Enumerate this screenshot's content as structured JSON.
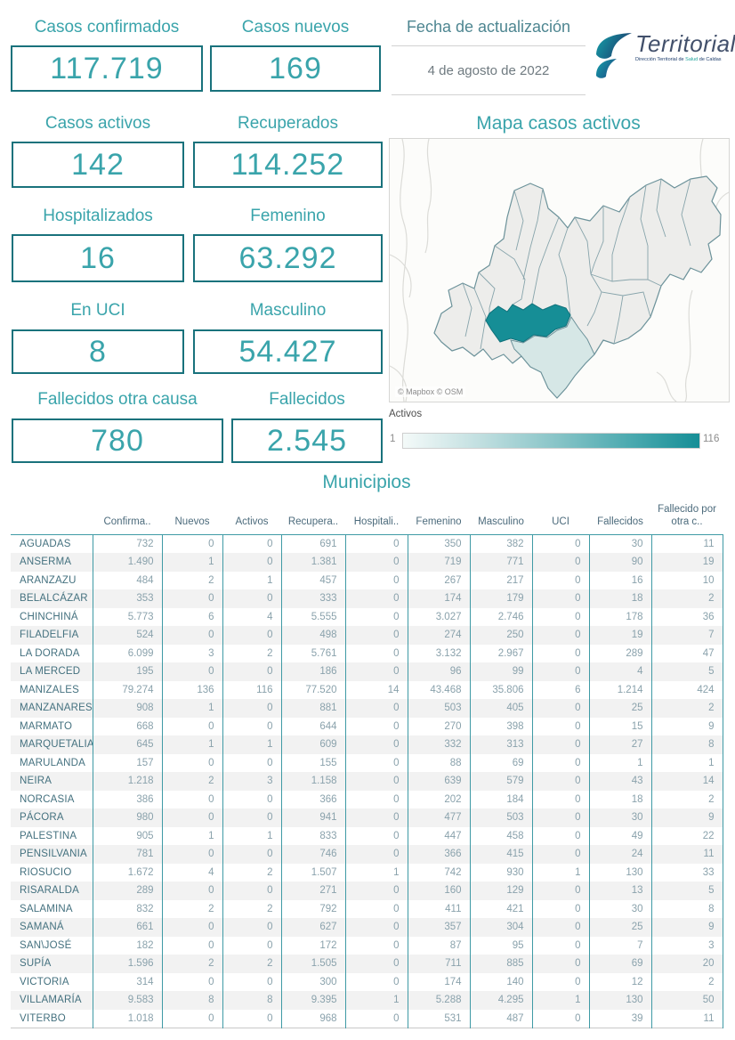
{
  "stats": {
    "cards": [
      {
        "id": "confirmados",
        "label": "Casos confirmados",
        "value": "117.719"
      },
      {
        "id": "nuevos",
        "label": "Casos nuevos",
        "value": "169"
      },
      {
        "id": "activos",
        "label": "Casos activos",
        "value": "142"
      },
      {
        "id": "recuperados",
        "label": "Recuperados",
        "value": "114.252"
      },
      {
        "id": "hospitalizados",
        "label": "Hospitalizados",
        "value": "16"
      },
      {
        "id": "femenino",
        "label": "Femenino",
        "value": "63.292"
      },
      {
        "id": "uci",
        "label": "En UCI",
        "value": "8"
      },
      {
        "id": "masculino",
        "label": "Masculino",
        "value": "54.427"
      },
      {
        "id": "fallecidos_otra",
        "label": "Fallecidos otra causa",
        "value": "780"
      },
      {
        "id": "fallecidos",
        "label": "Fallecidos",
        "value": "2.545"
      }
    ]
  },
  "update": {
    "label": "Fecha de actualización",
    "value": "4 de agosto de 2022"
  },
  "logo": {
    "name": "Territorial",
    "subtitle_pre": "Dirección Territorial de ",
    "subtitle_accent": "Salud",
    "subtitle_post": " de Caldas"
  },
  "map": {
    "title": "Mapa casos activos",
    "attribution": "© Mapbox © OSM",
    "legend_label": "Activos",
    "legend_min": "1",
    "legend_max": "116",
    "highlight_color": "#168e96",
    "secondary_color": "#d6e7e6"
  },
  "table": {
    "title": "Municipios",
    "columns": [
      "Confirma..",
      "Nuevos",
      "Activos",
      "Recupera..",
      "Hospitali..",
      "Femenino",
      "Masculino",
      "UCI",
      "Fallecidos",
      "Fallecido por otra c.."
    ],
    "rows": [
      {
        "name": "AGUADAS",
        "values": [
          "732",
          "0",
          "0",
          "691",
          "0",
          "350",
          "382",
          "0",
          "30",
          "11"
        ]
      },
      {
        "name": "ANSERMA",
        "values": [
          "1.490",
          "1",
          "0",
          "1.381",
          "0",
          "719",
          "771",
          "0",
          "90",
          "19"
        ]
      },
      {
        "name": "ARANZAZU",
        "values": [
          "484",
          "2",
          "1",
          "457",
          "0",
          "267",
          "217",
          "0",
          "16",
          "10"
        ]
      },
      {
        "name": "BELALCÁZAR",
        "values": [
          "353",
          "0",
          "0",
          "333",
          "0",
          "174",
          "179",
          "0",
          "18",
          "2"
        ]
      },
      {
        "name": "CHINCHINÁ",
        "values": [
          "5.773",
          "6",
          "4",
          "5.555",
          "0",
          "3.027",
          "2.746",
          "0",
          "178",
          "36"
        ]
      },
      {
        "name": "FILADELFIA",
        "values": [
          "524",
          "0",
          "0",
          "498",
          "0",
          "274",
          "250",
          "0",
          "19",
          "7"
        ]
      },
      {
        "name": "LA DORADA",
        "values": [
          "6.099",
          "3",
          "2",
          "5.761",
          "0",
          "3.132",
          "2.967",
          "0",
          "289",
          "47"
        ]
      },
      {
        "name": "LA MERCED",
        "values": [
          "195",
          "0",
          "0",
          "186",
          "0",
          "96",
          "99",
          "0",
          "4",
          "5"
        ]
      },
      {
        "name": "MANIZALES",
        "values": [
          "79.274",
          "136",
          "116",
          "77.520",
          "14",
          "43.468",
          "35.806",
          "6",
          "1.214",
          "424"
        ]
      },
      {
        "name": "MANZANARES",
        "values": [
          "908",
          "1",
          "0",
          "881",
          "0",
          "503",
          "405",
          "0",
          "25",
          "2"
        ]
      },
      {
        "name": "MARMATO",
        "values": [
          "668",
          "0",
          "0",
          "644",
          "0",
          "270",
          "398",
          "0",
          "15",
          "9"
        ]
      },
      {
        "name": "MARQUETALIA",
        "values": [
          "645",
          "1",
          "1",
          "609",
          "0",
          "332",
          "313",
          "0",
          "27",
          "8"
        ]
      },
      {
        "name": "MARULANDA",
        "values": [
          "157",
          "0",
          "0",
          "155",
          "0",
          "88",
          "69",
          "0",
          "1",
          "1"
        ]
      },
      {
        "name": "NEIRA",
        "values": [
          "1.218",
          "2",
          "3",
          "1.158",
          "0",
          "639",
          "579",
          "0",
          "43",
          "14"
        ]
      },
      {
        "name": "NORCASIA",
        "values": [
          "386",
          "0",
          "0",
          "366",
          "0",
          "202",
          "184",
          "0",
          "18",
          "2"
        ]
      },
      {
        "name": "PÁCORA",
        "values": [
          "980",
          "0",
          "0",
          "941",
          "0",
          "477",
          "503",
          "0",
          "30",
          "9"
        ]
      },
      {
        "name": "PALESTINA",
        "values": [
          "905",
          "1",
          "1",
          "833",
          "0",
          "447",
          "458",
          "0",
          "49",
          "22"
        ]
      },
      {
        "name": "PENSILVANIA",
        "values": [
          "781",
          "0",
          "0",
          "746",
          "0",
          "366",
          "415",
          "0",
          "24",
          "11"
        ]
      },
      {
        "name": "RIOSUCIO",
        "values": [
          "1.672",
          "4",
          "2",
          "1.507",
          "1",
          "742",
          "930",
          "1",
          "130",
          "33"
        ]
      },
      {
        "name": "RISARALDA",
        "values": [
          "289",
          "0",
          "0",
          "271",
          "0",
          "160",
          "129",
          "0",
          "13",
          "5"
        ]
      },
      {
        "name": "SALAMINA",
        "values": [
          "832",
          "2",
          "2",
          "792",
          "0",
          "411",
          "421",
          "0",
          "30",
          "8"
        ]
      },
      {
        "name": "SAMANÁ",
        "values": [
          "661",
          "0",
          "0",
          "627",
          "0",
          "357",
          "304",
          "0",
          "25",
          "9"
        ]
      },
      {
        "name": "SAN\\JOSÉ",
        "values": [
          "182",
          "0",
          "0",
          "172",
          "0",
          "87",
          "95",
          "0",
          "7",
          "3"
        ]
      },
      {
        "name": "SUPÍA",
        "values": [
          "1.596",
          "2",
          "2",
          "1.505",
          "0",
          "711",
          "885",
          "0",
          "69",
          "20"
        ]
      },
      {
        "name": "VICTORIA",
        "values": [
          "314",
          "0",
          "0",
          "300",
          "0",
          "174",
          "140",
          "0",
          "12",
          "2"
        ]
      },
      {
        "name": "VILLAMARÍA",
        "values": [
          "9.583",
          "8",
          "8",
          "9.395",
          "1",
          "5.288",
          "4.295",
          "1",
          "130",
          "50"
        ]
      },
      {
        "name": "VITERBO",
        "values": [
          "1.018",
          "0",
          "0",
          "968",
          "0",
          "531",
          "487",
          "0",
          "39",
          "11"
        ]
      }
    ]
  },
  "chart_data": {
    "type": "heatmap",
    "subtype": "choropleth-map",
    "title": "Mapa casos activos",
    "legend": {
      "label": "Activos",
      "min": 1,
      "max": 116,
      "position": "below-map"
    },
    "regions": [
      {
        "name": "AGUADAS",
        "activos": 0
      },
      {
        "name": "ANSERMA",
        "activos": 0
      },
      {
        "name": "ARANZAZU",
        "activos": 1
      },
      {
        "name": "BELALCÁZAR",
        "activos": 0
      },
      {
        "name": "CHINCHINÁ",
        "activos": 4
      },
      {
        "name": "FILADELFIA",
        "activos": 0
      },
      {
        "name": "LA DORADA",
        "activos": 2
      },
      {
        "name": "LA MERCED",
        "activos": 0
      },
      {
        "name": "MANIZALES",
        "activos": 116
      },
      {
        "name": "MANZANARES",
        "activos": 0
      },
      {
        "name": "MARMATO",
        "activos": 0
      },
      {
        "name": "MARQUETALIA",
        "activos": 1
      },
      {
        "name": "MARULANDA",
        "activos": 0
      },
      {
        "name": "NEIRA",
        "activos": 3
      },
      {
        "name": "NORCASIA",
        "activos": 0
      },
      {
        "name": "PÁCORA",
        "activos": 0
      },
      {
        "name": "PALESTINA",
        "activos": 1
      },
      {
        "name": "PENSILVANIA",
        "activos": 0
      },
      {
        "name": "RIOSUCIO",
        "activos": 2
      },
      {
        "name": "RISARALDA",
        "activos": 0
      },
      {
        "name": "SALAMINA",
        "activos": 2
      },
      {
        "name": "SAMANÁ",
        "activos": 0
      },
      {
        "name": "SAN\\JOSÉ",
        "activos": 0
      },
      {
        "name": "SUPÍA",
        "activos": 2
      },
      {
        "name": "VICTORIA",
        "activos": 0
      },
      {
        "name": "VILLAMARÍA",
        "activos": 8
      },
      {
        "name": "VITERBO",
        "activos": 0
      }
    ]
  }
}
